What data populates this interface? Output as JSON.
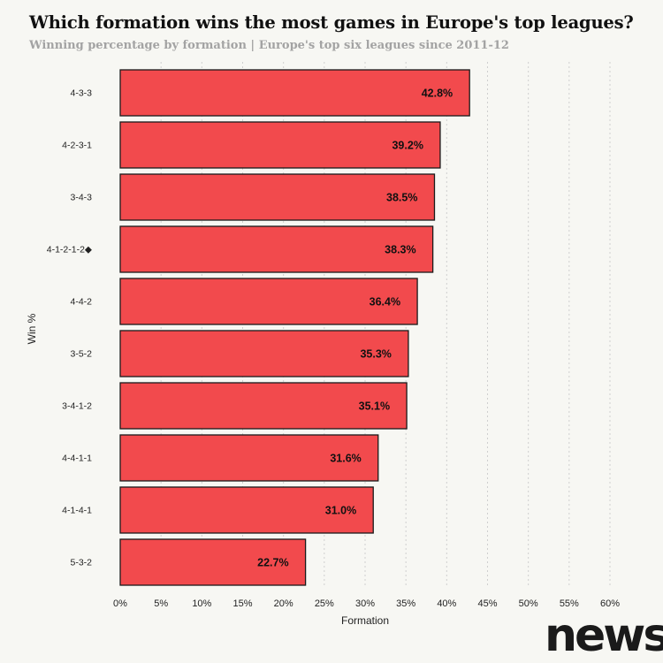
{
  "title": "Which formation wins the most games in Europe's top leagues?",
  "subtitle": "Winning percentage by formation | Europe's top six leagues since 2011-12",
  "logo_text": "news",
  "chart_data": {
    "type": "bar",
    "orientation": "horizontal",
    "categories": [
      "4-3-3",
      "4-2-3-1",
      "3-4-3",
      "4-1-2-1-2◆",
      "4-4-2",
      "3-5-2",
      "3-4-1-2",
      "4-4-1-1",
      "4-1-4-1",
      "5-3-2"
    ],
    "values": [
      42.8,
      39.2,
      38.5,
      38.3,
      36.4,
      35.3,
      35.1,
      31.6,
      31.0,
      22.7
    ],
    "data_labels": [
      "42.8%",
      "39.2%",
      "38.5%",
      "38.3%",
      "36.4%",
      "35.3%",
      "35.1%",
      "31.6%",
      "31.0%",
      "22.7%"
    ],
    "xlabel": "Formation",
    "ylabel": "Win %",
    "xlim": [
      0,
      60
    ],
    "xticks": [
      0,
      5,
      10,
      15,
      20,
      25,
      30,
      35,
      40,
      45,
      50,
      55,
      60
    ],
    "xtick_labels": [
      "0%",
      "5%",
      "10%",
      "15%",
      "20%",
      "25%",
      "30%",
      "35%",
      "40%",
      "45%",
      "50%",
      "55%",
      "60%"
    ],
    "grid": "vertical dotted",
    "bar_color": "#f24a4d",
    "bar_edge_color": "#1a1a1a"
  }
}
